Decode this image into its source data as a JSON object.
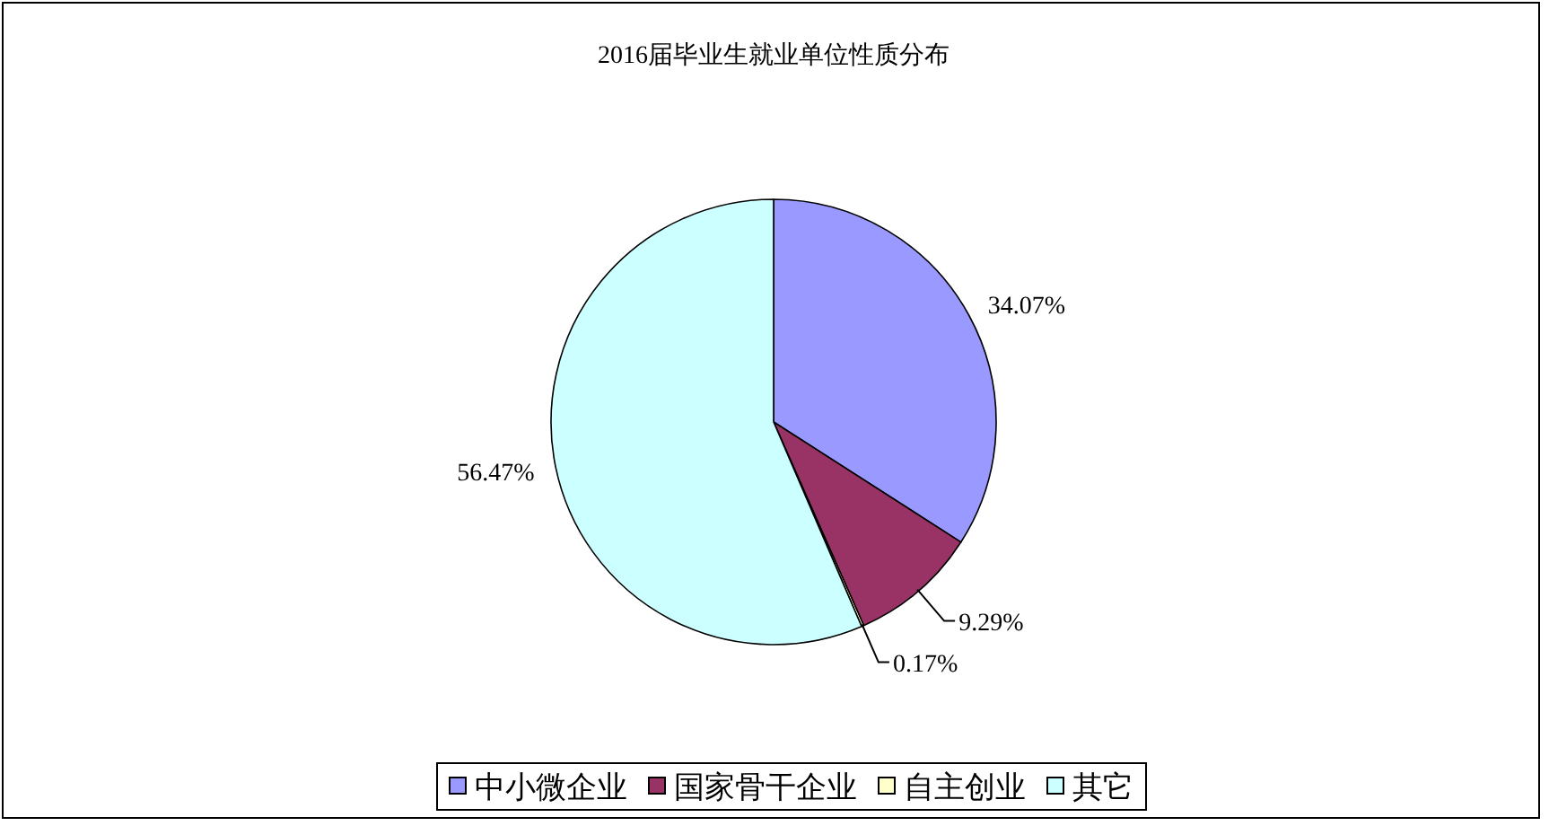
{
  "chart_data": {
    "type": "pie",
    "title": "2016届毕业生就业单位性质分布",
    "categories": [
      "中小微企业",
      "国家骨干企业",
      "自主创业",
      "其它"
    ],
    "values": [
      34.07,
      9.29,
      0.17,
      56.47
    ],
    "colors": [
      "#9999ff",
      "#993366",
      "#ffffcc",
      "#ccffff"
    ],
    "value_labels": [
      "34.07%",
      "9.29%",
      "0.17%",
      "56.47%"
    ],
    "legend": "bottom"
  }
}
